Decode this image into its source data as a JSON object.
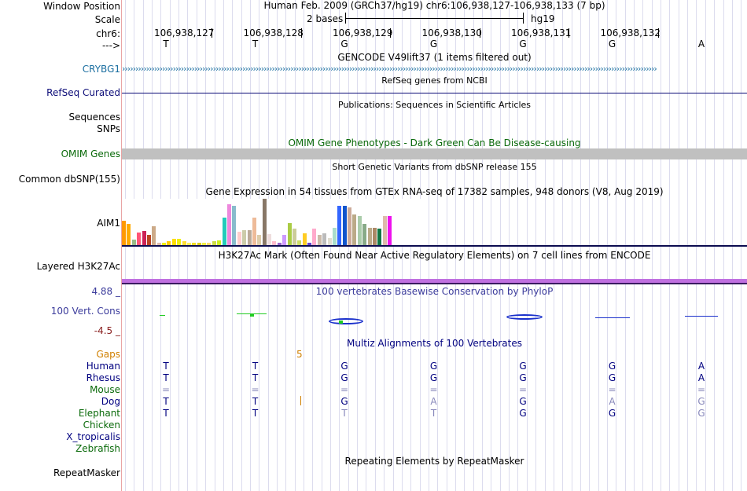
{
  "header": {
    "window_position_label": "Window Position",
    "scale_label": "Scale",
    "chrom_label": "chr6:",
    "arrow_label": "--->",
    "position_title": "Human Feb. 2009 (GRCh37/hg19)   chr6:106,938,127-106,938,133 (7 bp)",
    "scale_text": "2 bases",
    "assembly": "hg19",
    "coordinates": [
      "106,938,127",
      "106,938,128",
      "106,938,129",
      "106,938,130",
      "106,938,131",
      "106,938,132"
    ],
    "bases": [
      "T",
      "T",
      "G",
      "G",
      "G",
      "G",
      "A"
    ]
  },
  "tracks": {
    "gencode": {
      "title": "GENCODE V49lift37 (1 items filtered out)",
      "label": "CRYBG1"
    },
    "refseq": {
      "title": "RefSeq genes from NCBI",
      "label": "RefSeq Curated"
    },
    "publications": {
      "title": "Publications: Sequences in Scientific Articles",
      "label_line1": "Sequences",
      "label_line2": "SNPs"
    },
    "omim": {
      "title": "OMIM Gene Phenotypes - Dark Green Can Be Disease-causing",
      "label": "OMIM Genes"
    },
    "dbsnp": {
      "title": "Short Genetic Variants from dbSNP release 155",
      "label": "Common dbSNP(155)"
    },
    "gtex": {
      "title": "Gene Expression in 54 tissues from GTEx RNA-seq of 17382 samples, 948 donors (V8, Aug 2019)",
      "label": "AIM1",
      "values": [
        0.52,
        0.45,
        0.12,
        0.27,
        0.3,
        0.22,
        0.4,
        0.05,
        0.05,
        0.08,
        0.14,
        0.14,
        0.08,
        0.05,
        0.05,
        0.05,
        0.05,
        0.05,
        0.08,
        0.1,
        0.6,
        0.88,
        0.84,
        0.28,
        0.33,
        0.33,
        0.6,
        0.22,
        1.0,
        0.24,
        0.09,
        0.05,
        0.22,
        0.48,
        0.36,
        0.11,
        0.25,
        0.05,
        0.36,
        0.22,
        0.26,
        0.15,
        0.38,
        0.85,
        0.85,
        0.82,
        0.66,
        0.62,
        0.45,
        0.38,
        0.38,
        0.36,
        0.62,
        0.62
      ],
      "colors": [
        "#ff9900",
        "#ffaa00",
        "#99bb88",
        "#ff5577",
        "#cc2255",
        "#bb4422",
        "#ccaa88",
        "#ddbbaa",
        "#eeee00",
        "#ffcc00",
        "#ffdd00",
        "#eeee11",
        "#ffdd33",
        "#ffee55",
        "#eedd22",
        "#ddcc11",
        "#eeee44",
        "#ffdd66",
        "#ccdd44",
        "#ccee22",
        "#22ccbb",
        "#ee88dd",
        "#88bbcc",
        "#ffcccc",
        "#ccccaa",
        "#bbaa99",
        "#eebb99",
        "#ddccaa",
        "#887766",
        "#eedddd",
        "#ffbbcc",
        "#9966cc",
        "#cc99ff",
        "#aacc44",
        "#cccc99",
        "#ccdd66",
        "#ffcc22",
        "#6644cc",
        "#ffaacc",
        "#ccbbaa",
        "#bbbbbb",
        "#e0ddd0",
        "#aaddcc",
        "#3366ff",
        "#1155cc",
        "#ccaa99",
        "#bbaa88",
        "#aaccaa",
        "#88aa88",
        "#bbaa88",
        "#aa8866",
        "#117744",
        "#ddbbaa",
        "#ee11ee"
      ]
    },
    "h3k27ac": {
      "title": "H3K27Ac Mark (Often Found Near Active Regulatory Elements) on 7 cell lines from ENCODE",
      "label": "Layered H3K27Ac"
    },
    "phylop": {
      "title": "100 vertebrates Basewise Conservation by PhyloP",
      "label": "100 Vert. Cons",
      "max_label": "4.88 _",
      "min_label": "-4.5 _"
    },
    "multiz": {
      "title": "Multiz Alignments of 100 Vertebrates",
      "gaps_label": "Gaps",
      "gap_value": "5",
      "species": [
        {
          "name": "Human",
          "bases": [
            "T",
            "T",
            "G",
            "G",
            "G",
            "G",
            "A"
          ]
        },
        {
          "name": "Rhesus",
          "bases": [
            "T",
            "T",
            "G",
            "G",
            "G",
            "G",
            "A"
          ]
        },
        {
          "name": "Mouse",
          "bases": [
            "=",
            "=",
            "=",
            "=",
            "=",
            "=",
            "="
          ]
        },
        {
          "name": "Dog",
          "bases": [
            "T",
            "T",
            "G",
            "A",
            "G",
            "A",
            "G"
          ]
        },
        {
          "name": "Elephant",
          "bases": [
            "T",
            "T",
            "T",
            "T",
            "G",
            "G",
            "G"
          ]
        },
        {
          "name": "Chicken",
          "bases": []
        },
        {
          "name": "X_tropicalis",
          "bases": []
        },
        {
          "name": "Zebrafish",
          "bases": []
        }
      ]
    },
    "repeatmasker": {
      "title": "Repeating Elements by RepeatMasker",
      "label": "RepeatMasker"
    }
  },
  "colors": {
    "gencode": "#1a6ea0",
    "refseq": "#0c0c78",
    "omim": "#0a6a0a",
    "omim_bar": "#c0c0c0",
    "h3k27ac": "#c070e0",
    "phylop": "#3c3c9c",
    "gaps": "#d08000"
  }
}
